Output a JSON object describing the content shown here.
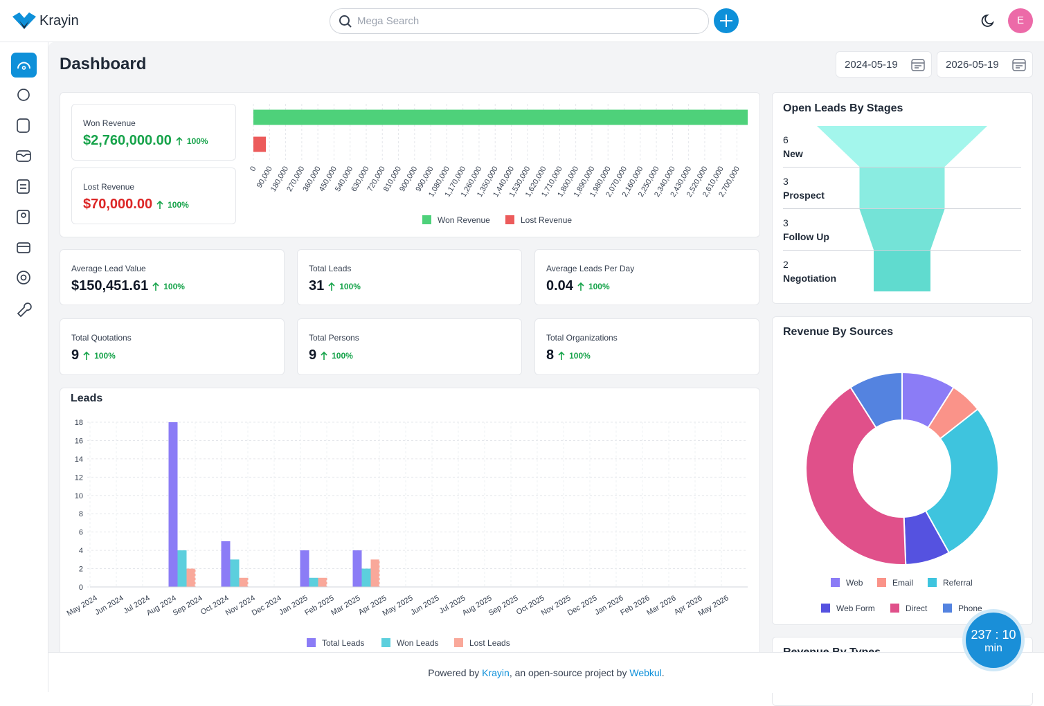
{
  "header": {
    "logo": "Krayin",
    "search_placeholder": "Mega Search",
    "avatar": "E"
  },
  "page": {
    "title": "Dashboard",
    "date_from": "2024-05-19",
    "date_to": "2026-05-19"
  },
  "stats": [
    {
      "label": "Won Revenue",
      "value": "$2,760,000.00",
      "change": "100%"
    },
    {
      "label": "Lost Revenue",
      "value": "$70,000.00",
      "change": "100%"
    },
    {
      "label": "Average Lead Value",
      "value": "$150,451.61",
      "change": "100%"
    },
    {
      "label": "Total Leads",
      "value": "31",
      "change": "100%"
    },
    {
      "label": "Average Leads Per Day",
      "value": "0.04",
      "change": "100%"
    },
    {
      "label": "Total Quotations",
      "value": "9",
      "change": "100%"
    },
    {
      "label": "Total Persons",
      "value": "9",
      "change": "100%"
    },
    {
      "label": "Total Organizations",
      "value": "8",
      "change": "100%"
    }
  ],
  "chart_data": [
    {
      "type": "hbar",
      "categories": [
        null
      ],
      "series": [
        {
          "name": "Won Revenue",
          "color": "#4ed17a",
          "values": [
            2760000
          ]
        },
        {
          "name": "Lost Revenue",
          "color": "#ec5b5b",
          "values": [
            70000
          ]
        }
      ],
      "xlim": [
        0,
        2760000
      ],
      "xticks": [
        0,
        {
          "value": 90000,
          "label": "90,000"
        },
        {
          "value": 180000,
          "label": "180,000"
        },
        {
          "value": 270000,
          "label": "270,000"
        },
        {
          "value": 360000,
          "label": "360,000"
        },
        {
          "value": 450000,
          "label": "450,000"
        },
        {
          "value": 540000,
          "label": "540,000"
        },
        {
          "value": 630000,
          "label": "630,000"
        },
        {
          "value": 720000,
          "label": "720,000"
        },
        {
          "value": 810000,
          "label": "810,000"
        },
        {
          "value": 900000,
          "label": "900,000"
        },
        {
          "value": 990000,
          "label": "990,000"
        },
        {
          "value": 1080000,
          "label": "1,080,000"
        },
        {
          "value": 1170000,
          "label": "1,170,000"
        },
        {
          "value": 1260000,
          "label": "1,260,000"
        },
        {
          "value": 1350000,
          "label": "1,350,000"
        },
        {
          "value": 1440000,
          "label": "1,440,000"
        },
        {
          "value": 1530000,
          "label": "1,530,000"
        },
        {
          "value": 1620000,
          "label": "1,620,000"
        },
        {
          "value": 1710000,
          "label": "1,710,000"
        },
        {
          "value": 1800000,
          "label": "1,800,000"
        },
        {
          "value": 1890000,
          "label": "1,890,000"
        },
        {
          "value": 1980000,
          "label": "1,980,000"
        },
        {
          "value": 2070000,
          "label": "2,070,000"
        },
        {
          "value": 2160000,
          "label": "2,160,000"
        },
        {
          "value": 2250000,
          "label": "2,250,000"
        },
        {
          "value": 2340000,
          "label": "2,340,000"
        },
        {
          "value": 2430000,
          "label": "2,430,000"
        },
        {
          "value": 2520000,
          "label": "2,520,000"
        },
        {
          "value": 2610000,
          "label": "2,610,000"
        },
        {
          "value": 2700000,
          "label": "2,700,000"
        }
      ],
      "grid": true
    },
    {
      "type": "bar",
      "title": "Leads",
      "categories": [
        "May 2024",
        "Jun 2024",
        "Jul 2024",
        "Aug 2024",
        "Sep 2024",
        "Oct 2024",
        "Nov 2024",
        "Dec 2024",
        "Jan 2025",
        "Feb 2025",
        "Mar 2025",
        "Apr 2025",
        "May 2025",
        "Jun 2025",
        "Jul 2025",
        "Aug 2025",
        "Sep 2025",
        "Oct 2025",
        "Nov 2025",
        "Dec 2025",
        "Jan 2026",
        "Feb 2026",
        "Mar 2026",
        "Apr 2026",
        "May 2026"
      ],
      "series": [
        {
          "name": "Total Leads",
          "color": "#8b7cf6",
          "values": [
            0,
            0,
            0,
            18,
            0,
            5,
            0,
            0,
            4,
            0,
            4,
            0,
            0,
            0,
            0,
            0,
            0,
            0,
            0,
            0,
            0,
            0,
            0,
            0,
            0
          ]
        },
        {
          "name": "Won Leads",
          "color": "#5ccfdd",
          "values": [
            0,
            0,
            0,
            4,
            0,
            3,
            0,
            0,
            1,
            0,
            2,
            0,
            0,
            0,
            0,
            0,
            0,
            0,
            0,
            0,
            0,
            0,
            0,
            0,
            0
          ]
        },
        {
          "name": "Lost Leads",
          "color": "#f9a89a",
          "values": [
            0,
            0,
            0,
            2,
            0,
            1,
            0,
            0,
            1,
            0,
            3,
            0,
            0,
            0,
            0,
            0,
            0,
            0,
            0,
            0,
            0,
            0,
            0,
            0,
            0
          ]
        }
      ],
      "ylim": [
        0,
        18
      ],
      "yticks": [
        0,
        2,
        4,
        6,
        8,
        10,
        12,
        14,
        16,
        18
      ],
      "grid": true
    },
    {
      "type": "funnel",
      "title": "Open Leads By Stages",
      "categories": [
        "New",
        "Prospect",
        "Follow Up",
        "Negotiation"
      ],
      "values": [
        6,
        3,
        3,
        2
      ],
      "colors": [
        "#a3f6ec",
        "#8aece1",
        "#74e3d7",
        "#60dbcf"
      ]
    },
    {
      "type": "doughnut",
      "title": "Revenue By Sources",
      "categories": [
        "Web",
        "Email",
        "Referral",
        "Web Form",
        "Direct",
        "Phone"
      ],
      "values": [
        9,
        5.4,
        27.5,
        7.5,
        41.6,
        9
      ],
      "colors": [
        "#8b7cf6",
        "#fa9389",
        "#3ec4de",
        "#5552e0",
        "#e0508a",
        "#5483e0"
      ]
    }
  ],
  "partial_card": {
    "title": "Revenue By Types"
  },
  "timer": {
    "value": "237 : 10",
    "unit": "min"
  },
  "footer": {
    "prefix": "Powered by ",
    "link1": "Krayin",
    "middle": ", an open-source project by ",
    "link2": "Webkul",
    "suffix": "."
  }
}
